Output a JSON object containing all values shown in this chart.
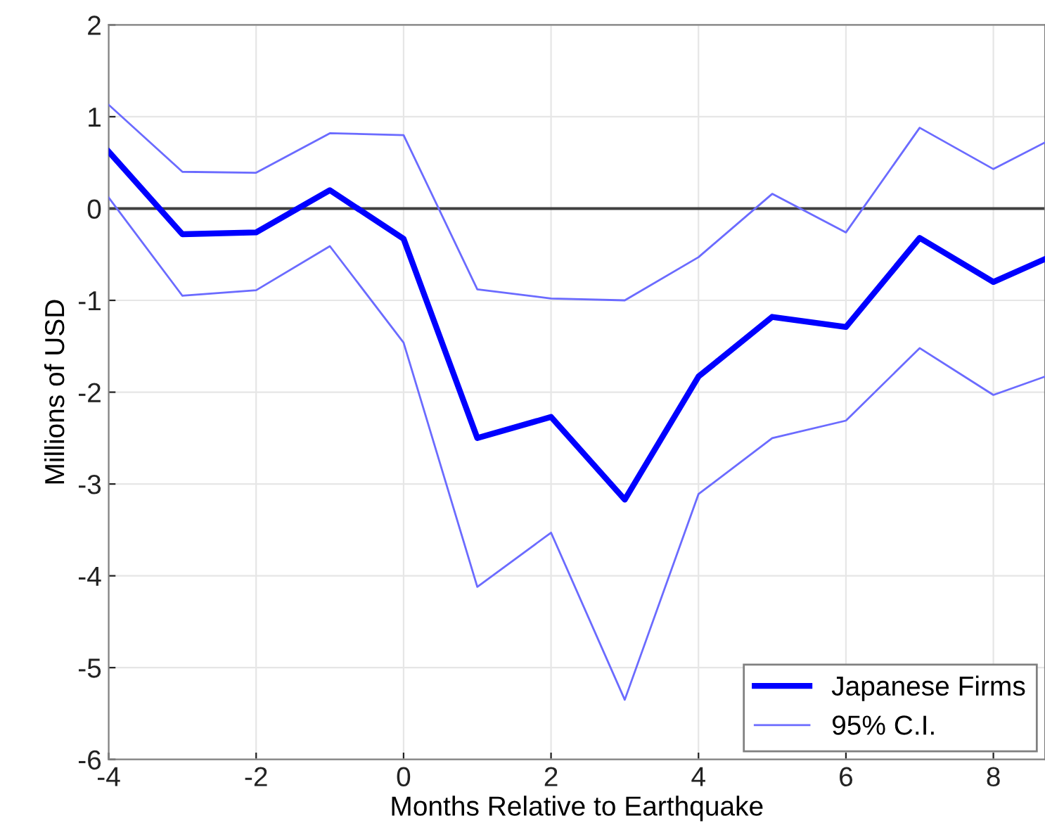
{
  "chart_data": {
    "type": "line",
    "xlabel": "Months Relative to Earthquake",
    "ylabel": "Millions of USD",
    "x": [
      -4,
      -3,
      -2,
      -1,
      0,
      1,
      2,
      3,
      4,
      5,
      6,
      7,
      8,
      8.7
    ],
    "series": [
      {
        "name": "Japanese Firms",
        "color": "#0000ff",
        "values": [
          0.62,
          -0.28,
          -0.26,
          0.2,
          -0.33,
          -2.5,
          -2.27,
          -3.17,
          -1.83,
          -1.18,
          -1.29,
          -0.32,
          -0.8,
          -0.55
        ]
      },
      {
        "name": "95% C.I.",
        "color": "#6b6bff",
        "values": [
          1.13,
          0.4,
          0.39,
          0.82,
          0.8,
          -0.88,
          -0.98,
          -1.0,
          -0.53,
          0.16,
          -0.26,
          0.88,
          0.43,
          0.72
        ]
      },
      {
        "color": "#6b6bff",
        "values": [
          0.12,
          -0.95,
          -0.89,
          -0.41,
          -1.46,
          -4.12,
          -3.53,
          -5.35,
          -3.11,
          -2.5,
          -2.31,
          -1.52,
          -2.03,
          -1.83
        ]
      }
    ],
    "xlim": [
      -4,
      8.7
    ],
    "xticks": [
      -4,
      -2,
      0,
      2,
      4,
      6,
      8
    ],
    "ylim": [
      -6,
      2
    ],
    "yticks": [
      -6,
      -5,
      -4,
      -3,
      -2,
      -1,
      0,
      1,
      2
    ],
    "ref_lines": [
      {
        "axis": "y",
        "value": 0,
        "color": "#404040"
      }
    ],
    "grid": true,
    "legend": "bottom right"
  }
}
